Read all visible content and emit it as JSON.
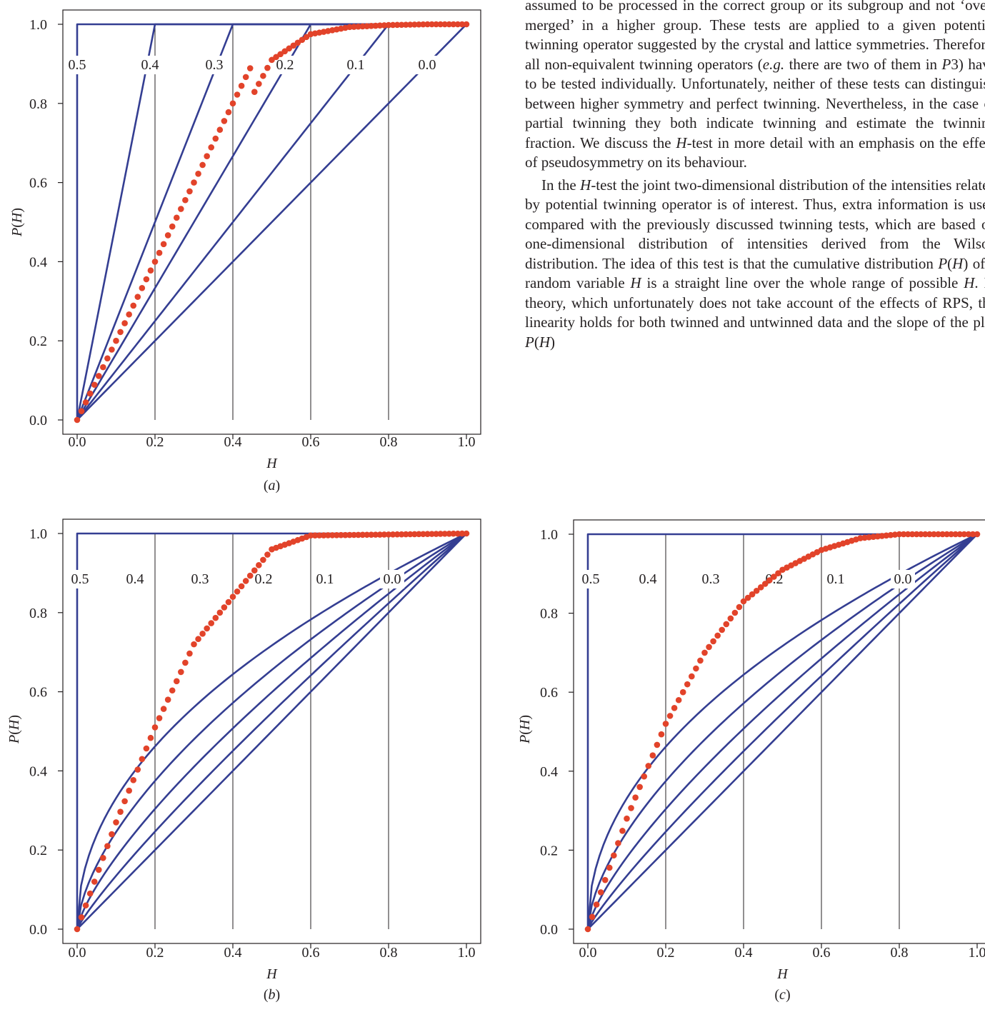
{
  "article": {
    "paragraph1_html": "assumed to be processed in the correct group or its subgroup and not ‘over-merged’ in a higher group. These tests are applied to a given potential twinning operator suggested by the crystal and lattice symmetries. Therefore, all non-equivalent twinning operators (<i>e.g.</i> there are two of them in <i>P</i>3) have to be tested individually. Unfortunately, neither of these tests can distinguish between higher symmetry and perfect twinning. Nevertheless, in the case of partial twinning they both indicate twinning and estimate the twinning fraction. We discuss the <i>H</i>-test in more detail with an emphasis on the effect of pseudosymmetry on its behaviour.",
    "paragraph2_html": "In the <i>H</i>-test the joint two-dimensional distribution of the intensities related by potential twinning operator is of interest. Thus, extra information is used compared with the previously discussed twinning tests, which are based on one-dimensional distribution of intensities derived from the Wilson distribution. The idea of this test is that the cumulative distribution <i>P</i>(<i>H</i>) of a random variable <i>H</i> is a straight line over the whole range of possible <i>H</i>. In theory, which unfortunately does not take account of the effects of RPS, the linearity holds for both twinned and untwinned data and the slope of the plot <i>P</i>(<i>H</i>)"
  },
  "colors": {
    "curve": "#343e92",
    "dots": "#e2432a",
    "axis": "#231f20",
    "gridline": "#231f20"
  },
  "chart_data": [
    {
      "type": "line",
      "panel_label": "(a)",
      "xlabel": "H",
      "ylabel": "P(H)",
      "xlim": [
        0,
        1
      ],
      "ylim": [
        0,
        1
      ],
      "x_ticks": [
        "0.0",
        "0.2",
        "0.4",
        "0.6",
        "0.8",
        "1.0"
      ],
      "y_ticks": [
        "0.0",
        "0.2",
        "0.4",
        "0.6",
        "0.8",
        "1.0"
      ],
      "vertical_gridlines_at": [
        0.2,
        0.4,
        0.6,
        0.8
      ],
      "diagonal_reference": true,
      "curve_labels": [
        "0.5",
        "0.4",
        "0.3",
        "0.2",
        "0.1",
        "0.0"
      ],
      "curves": [
        {
          "name": "0.5",
          "alpha": 0.5,
          "shape": "step"
        },
        {
          "name": "0.4",
          "alpha": 0.4,
          "shape": "linear"
        },
        {
          "name": "0.3",
          "alpha": 0.3,
          "shape": "linear"
        },
        {
          "name": "0.2",
          "alpha": 0.2,
          "shape": "linear"
        },
        {
          "name": "0.1",
          "alpha": 0.1,
          "shape": "linear"
        },
        {
          "name": "0.0",
          "alpha": 0.0,
          "shape": "linear"
        }
      ],
      "observed_points": {
        "x": [
          0.0,
          0.5,
          0.6,
          0.7,
          0.8,
          0.9,
          1.0
        ],
        "y": [
          0.0,
          0.91,
          0.975,
          0.993,
          0.998,
          1.0,
          1.0
        ],
        "initial_slope": 2.0,
        "n_points": 91
      }
    },
    {
      "type": "line",
      "panel_label": "(b)",
      "xlabel": "H",
      "ylabel": "P(H)",
      "xlim": [
        0,
        1
      ],
      "ylim": [
        0,
        1
      ],
      "x_ticks": [
        "0.0",
        "0.2",
        "0.4",
        "0.6",
        "0.8",
        "1.0"
      ],
      "y_ticks": [
        "0.0",
        "0.2",
        "0.4",
        "0.6",
        "0.8",
        "1.0"
      ],
      "vertical_gridlines_at": [
        0.2,
        0.4,
        0.6,
        0.8
      ],
      "diagonal_reference": true,
      "curve_labels": [
        "0.5",
        "0.4",
        "0.3",
        "0.2",
        "0.1",
        "0.0"
      ],
      "curves": [
        {
          "name": "0.5",
          "alpha": 0.5,
          "shape": "step"
        },
        {
          "name": "0.4",
          "alpha": 0.4,
          "shape": "concave"
        },
        {
          "name": "0.3",
          "alpha": 0.3,
          "shape": "concave"
        },
        {
          "name": "0.2",
          "alpha": 0.2,
          "shape": "concave"
        },
        {
          "name": "0.1",
          "alpha": 0.1,
          "shape": "concave"
        },
        {
          "name": "0.0",
          "alpha": 0.0,
          "shape": "concave"
        }
      ],
      "observed_points": {
        "x": [
          0.0,
          0.1,
          0.2,
          0.3,
          0.4,
          0.5,
          0.6,
          1.0
        ],
        "y": [
          0.0,
          0.27,
          0.51,
          0.72,
          0.84,
          0.96,
          0.995,
          1.0
        ],
        "n_points": 91
      }
    },
    {
      "type": "line",
      "panel_label": "(c)",
      "xlabel": "H",
      "ylabel": "P(H)",
      "xlim": [
        0,
        1
      ],
      "ylim": [
        0,
        1
      ],
      "x_ticks": [
        "0.0",
        "0.2",
        "0.4",
        "0.6",
        "0.8",
        "1.0"
      ],
      "y_ticks": [
        "0.0",
        "0.2",
        "0.4",
        "0.6",
        "0.8",
        "1.0"
      ],
      "vertical_gridlines_at": [
        0.2,
        0.4,
        0.6,
        0.8
      ],
      "diagonal_reference": true,
      "curve_labels": [
        "0.5",
        "0.4",
        "0.3",
        "0.2",
        "0.1",
        "0.0"
      ],
      "curves": [
        {
          "name": "0.5",
          "alpha": 0.5,
          "shape": "step"
        },
        {
          "name": "0.4",
          "alpha": 0.4,
          "shape": "concave"
        },
        {
          "name": "0.3",
          "alpha": 0.3,
          "shape": "concave"
        },
        {
          "name": "0.2",
          "alpha": 0.2,
          "shape": "concave"
        },
        {
          "name": "0.1",
          "alpha": 0.1,
          "shape": "concave"
        },
        {
          "name": "0.0",
          "alpha": 0.0,
          "shape": "concave"
        }
      ],
      "observed_points": {
        "x": [
          0.0,
          0.1,
          0.2,
          0.3,
          0.4,
          0.5,
          0.6,
          0.7,
          0.8,
          1.0
        ],
        "y": [
          0.0,
          0.28,
          0.52,
          0.7,
          0.83,
          0.91,
          0.96,
          0.99,
          1.0,
          1.0
        ],
        "n_points": 91
      }
    }
  ]
}
